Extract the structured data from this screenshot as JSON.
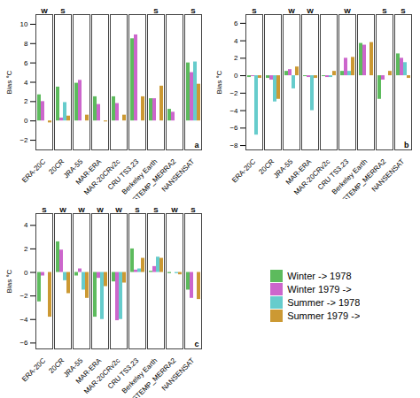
{
  "chart_data": [
    {
      "type": "bar",
      "categories": [
        "ERA-20C",
        "20CR",
        "JRA-55",
        "MAR-ERA",
        "MAR-20CRv2c",
        "CRU TS3.23",
        "Berkeley Earth",
        "GISTEMP_MERRA2",
        "NANSENSAT"
      ],
      "series": [
        {
          "name": "Winter -> 1978",
          "color": "#5DBB5D",
          "values": [
            2.7,
            3.5,
            3.9,
            2.5,
            2.5,
            8.5,
            2.3,
            1.2,
            6.0
          ]
        },
        {
          "name": "Winter 1979 ->",
          "color": "#CC66CC",
          "values": [
            2.0,
            0.3,
            4.2,
            1.7,
            1.8,
            8.9,
            2.3,
            0.9,
            5.0
          ]
        },
        {
          "name": "Summer -> 1978",
          "color": "#66CCCC",
          "values": [
            null,
            1.9,
            null,
            null,
            null,
            null,
            null,
            null,
            6.1
          ]
        },
        {
          "name": "Summer 1979 ->",
          "color": "#CC9933",
          "values": [
            -0.2,
            0.5,
            0.6,
            -0.1,
            0.6,
            2.5,
            3.6,
            null,
            3.8
          ]
        }
      ],
      "ylabel": "Bias °C",
      "ylim": [
        -3,
        11
      ],
      "yticks": [
        -2,
        0,
        2,
        4,
        6,
        8,
        10
      ],
      "annotations": [
        {
          "text": "a"
        },
        {
          "text": "W",
          "x": "ERA-20C"
        },
        {
          "text": "S",
          "x": "20CR"
        },
        {
          "text": "S",
          "x": "Berkeley Earth"
        },
        {
          "text": "S",
          "x": "NANSENSAT"
        }
      ]
    },
    {
      "type": "bar",
      "categories": [
        "ERA-20C",
        "20CR",
        "JRA-55",
        "MAR-ERA",
        "MAR-20CRv2c",
        "CRU TS3.23",
        "Berkeley Earth",
        "GISTEMP_MERRA2",
        "NANSENSAT"
      ],
      "series": [
        {
          "name": "Winter -> 1978",
          "color": "#5DBB5D",
          "values": [
            -0.2,
            -0.3,
            0.5,
            -0.1,
            -0.1,
            0.5,
            3.7,
            -2.7,
            2.5
          ]
        },
        {
          "name": "Winter 1979 ->",
          "color": "#CC66CC",
          "values": [
            -0.1,
            -0.5,
            0.7,
            -0.2,
            -0.2,
            2.0,
            3.5,
            -0.5,
            2.0
          ]
        },
        {
          "name": "Summer -> 1978",
          "color": "#66CCCC",
          "values": [
            -6.8,
            -3.0,
            -1.5,
            -4.0,
            -0.2,
            0.5,
            null,
            null,
            1.5
          ]
        },
        {
          "name": "Summer 1979 ->",
          "color": "#CC9933",
          "values": [
            -0.3,
            -2.7,
            1.0,
            -0.3,
            0.5,
            2.1,
            3.8,
            0.5,
            -0.3
          ]
        }
      ],
      "ylabel": "Bias °C",
      "ylim": [
        -8.5,
        7
      ],
      "yticks": [
        -8,
        -6,
        -4,
        -2,
        0,
        2,
        4,
        6
      ],
      "annotations": [
        {
          "text": "b"
        },
        {
          "text": "S",
          "x": "ERA-20C"
        },
        {
          "text": "W",
          "x": "JRA-55"
        },
        {
          "text": "W",
          "x": "MAR-ERA"
        },
        {
          "text": "W",
          "x": "CRU TS3.23"
        },
        {
          "text": "S",
          "x": "GISTEMP_MERRA2"
        },
        {
          "text": "S",
          "x": "NANSENSAT"
        }
      ]
    },
    {
      "type": "bar",
      "categories": [
        "ERA-20C",
        "20CR",
        "JRA-55",
        "MAR-ERA",
        "MAR-20CRv2c",
        "CRU TS3.23",
        "Berkeley Earth",
        "GISTEMP_MERRA2",
        "NANSENSAT"
      ],
      "series": [
        {
          "name": "Winter -> 1978",
          "color": "#5DBB5D",
          "values": [
            -2.5,
            2.6,
            -0.3,
            -3.8,
            -0.8,
            2.0,
            0.1,
            -0.1,
            -1.5
          ]
        },
        {
          "name": "Winter 1979 ->",
          "color": "#CC66CC",
          "values": [
            -0.3,
            1.9,
            0.3,
            -0.5,
            -4.1,
            0.2,
            0.5,
            0.0,
            -2.2
          ]
        },
        {
          "name": "Summer -> 1978",
          "color": "#66CCCC",
          "values": [
            null,
            -0.7,
            -1.5,
            -4.0,
            -4.0,
            0.3,
            1.3,
            -0.1,
            null
          ]
        },
        {
          "name": "Summer 1979 ->",
          "color": "#CC9933",
          "values": [
            -3.8,
            -1.8,
            -2.2,
            -1.2,
            -0.9,
            1.2,
            1.2,
            -0.2,
            -2.3
          ]
        }
      ],
      "ylabel": "Bias °C",
      "ylim": [
        -6.5,
        5
      ],
      "yticks": [
        -6,
        -4,
        -2,
        0,
        2,
        4
      ],
      "annotations": [
        {
          "text": "c"
        },
        {
          "text": "S",
          "x": "ERA-20C"
        },
        {
          "text": "W",
          "x": "20CR"
        },
        {
          "text": "W",
          "x": "JRA-55"
        },
        {
          "text": "W",
          "x": "MAR-ERA"
        },
        {
          "text": "W",
          "x": "MAR-20CRv2c"
        },
        {
          "text": "S",
          "x": "CRU TS3.23"
        },
        {
          "text": "S",
          "x": "Berkeley Earth"
        },
        {
          "text": "W",
          "x": "GISTEMP_MERRA2"
        },
        {
          "text": "S",
          "x": "NANSENSAT"
        }
      ]
    }
  ]
}
